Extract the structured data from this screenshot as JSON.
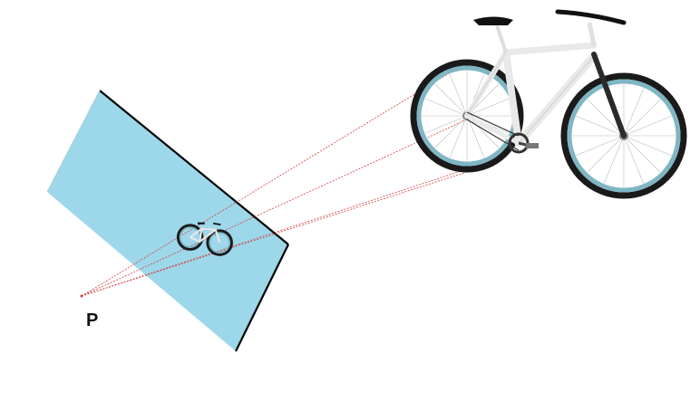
{
  "diagram": {
    "point_label": "P",
    "colors": {
      "plane_fill": "#9dd7ea",
      "plane_edge": "#000000",
      "ray": "#d04040",
      "bike_frame": "#f2f2f2",
      "bike_rim": "#7fb6c4",
      "bike_tire": "#1a1a1a"
    },
    "objects": [
      "projection-plane",
      "projected-bicycle-image",
      "bicycle",
      "projection-rays",
      "center-of-projection"
    ]
  }
}
